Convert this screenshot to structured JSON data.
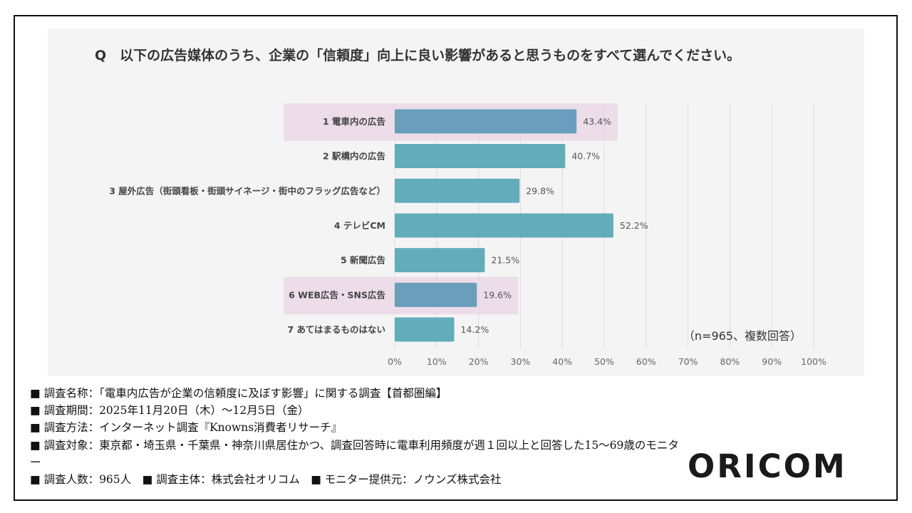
{
  "question": "Q　以下の広告媒体のうち、企業の「信頼度」向上に良い影響があると思うものをすべて選んでください。",
  "chart_data": {
    "type": "bar",
    "orientation": "horizontal",
    "categories": [
      "1 電車内の広告",
      "2 駅構内の広告",
      "3 屋外広告（街頭看板・街頭サイネージ・街中のフラッグ広告など）",
      "4 テレビCM",
      "5 新聞広告",
      "6 WEB広告・SNS広告",
      "7 あてはまるものはない"
    ],
    "values": [
      43.4,
      40.7,
      29.8,
      52.2,
      21.5,
      19.6,
      14.2
    ],
    "value_labels": [
      "43.4%",
      "40.7%",
      "29.8%",
      "52.2%",
      "21.5%",
      "19.6%",
      "14.2%"
    ],
    "highlighted": [
      true,
      false,
      false,
      false,
      false,
      true,
      false
    ],
    "xlim": [
      0,
      100
    ],
    "xticks": [
      "0%",
      "10%",
      "20%",
      "30%",
      "40%",
      "50%",
      "60%",
      "70%",
      "80%",
      "90%",
      "100%"
    ],
    "grid": true,
    "annotation": "（n=965、複数回答）",
    "colors": {
      "bar": "#63adbb",
      "bar_highlight": "#6b9dbd",
      "highlight_band": "#ecdde9",
      "grid": "#dcdcdc",
      "label": "#444444",
      "value_label": "#555555"
    }
  },
  "notes": [
    "■ 調査名称：「電車内広告が企業の信頼度に及ぼす影響」に関する調査【首都圏編】",
    "■ 調査期間：2025年11月20日（木）～12月5日（金）",
    "■ 調査方法：インターネット調査『Knowns消費者リサーチ』",
    "■ 調査対象：東京都・埼玉県・千葉県・神奈川県居住かつ、調査回答時に電車利用頻度が週１回以上と回答した15～69歳のモニター",
    "■ 調査人数：965人　■ 調査主体：株式会社オリコム　■ モニター提供元：ノウンズ株式会社"
  ],
  "brand": "ORICOM"
}
